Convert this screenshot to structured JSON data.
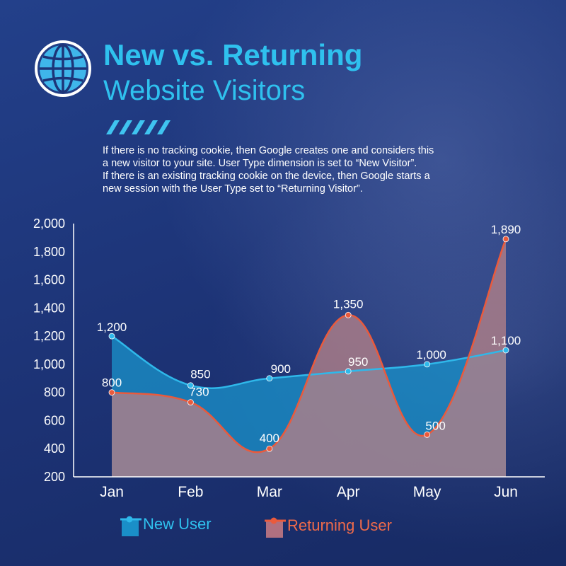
{
  "header": {
    "title_bold": "New vs. Returning",
    "title_light": "Website Visitors",
    "description": [
      "If there is no tracking cookie, then Google creates one and considers this",
      "a new visitor to your site. User Type dimension is set to “New Visitor”.",
      "If there is an existing tracking cookie on the device, then Google starts a",
      "new session with the User Type set  to “Returning Visitor”."
    ]
  },
  "icons": {
    "globe": "globe-icon",
    "stripes": "diagonal-stripes-decoration"
  },
  "colors": {
    "background": "#1d3478",
    "title": "#2fc1ee",
    "new_user": "#2fb8ea",
    "returning_user": "#ea5a3c",
    "returning_fill": "#b08088",
    "new_fill": "#1a8fc8"
  },
  "chart_data": {
    "type": "area",
    "categories": [
      "Jan",
      "Feb",
      "Mar",
      "Apr",
      "May",
      "Jun"
    ],
    "ylim": [
      200,
      2000
    ],
    "yticks": [
      "200",
      "400",
      "600",
      "800",
      "1,000",
      "1,200",
      "1,400",
      "1,600",
      "1,800",
      "2,000"
    ],
    "series": [
      {
        "name": "New User",
        "values": [
          1200,
          850,
          900,
          950,
          1000,
          1100
        ],
        "labels": [
          "1,200",
          "850",
          "900",
          "950",
          "1,000",
          "1,100"
        ]
      },
      {
        "name": "Returning User",
        "values": [
          800,
          730,
          400,
          1350,
          500,
          1890
        ],
        "labels": [
          "800",
          "730",
          "400",
          "1,350",
          "500",
          "1,890"
        ]
      }
    ],
    "legend_position": "bottom",
    "grid": false
  }
}
